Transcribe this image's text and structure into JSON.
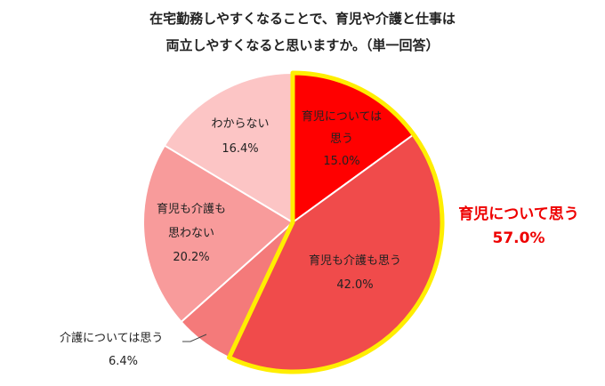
{
  "chart_data": {
    "type": "pie",
    "title_lines": [
      "在宅勤務しやすくなることで、育児や介護と仕事は",
      "両立しやすくなると思いますか。（単一回答）"
    ],
    "slices": [
      {
        "label_lines": [
          "育児については",
          "思う"
        ],
        "value": 15.0,
        "value_label": "15.0%",
        "color": "#ff0000"
      },
      {
        "label_lines": [
          "育児も介護も思う"
        ],
        "value": 42.0,
        "value_label": "42.0%",
        "color": "#f04b4b"
      },
      {
        "label_lines": [
          "介護については思う"
        ],
        "value": 6.4,
        "value_label": "6.4%",
        "color": "#f47a7a"
      },
      {
        "label_lines": [
          "育児も介護も",
          "思わない"
        ],
        "value": 20.2,
        "value_label": "20.2%",
        "color": "#f89b9b"
      },
      {
        "label_lines": [
          "わからない"
        ],
        "value": 16.4,
        "value_label": "16.4%",
        "color": "#fcc5c5"
      }
    ],
    "summary": {
      "label": "育児について思う",
      "value_label": "57.0%",
      "color": "#ee0000",
      "highlight_color": "#ffee00"
    }
  }
}
